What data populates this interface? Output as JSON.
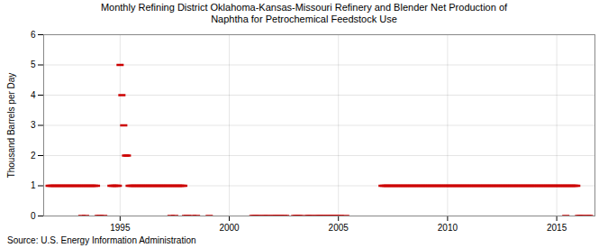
{
  "chart_data": {
    "type": "scatter",
    "title": "Monthly Refining District Oklahoma-Kansas-Missouri Refinery and Blender Net Production of\nNaphtha for Petrochemical Feedstock Use",
    "ylabel": "Thousand Barrels per Day",
    "source": "Source: U.S. Energy Information Administration",
    "color": "#cc0000",
    "marker": "dash",
    "grid": true,
    "xlim": [
      1991.5,
      2016.75
    ],
    "xticks": [
      1995,
      2000,
      2005,
      2010,
      2015
    ],
    "ylim": [
      0,
      6
    ],
    "yticks": [
      0,
      1,
      2,
      3,
      4,
      5,
      6
    ],
    "x": [
      1991.75,
      1991.833,
      1991.917,
      1992,
      1992.083,
      1992.167,
      1992.25,
      1992.333,
      1992.417,
      1992.5,
      1992.583,
      1992.667,
      1992.75,
      1992.833,
      1992.917,
      1993,
      1993.083,
      1993.167,
      1993.25,
      1993.333,
      1993.417,
      1993.5,
      1993.583,
      1993.667,
      1993.75,
      1993.833,
      1993.917,
      1993.25,
      1993.417,
      1994,
      1994.083,
      1994.25,
      1994.583,
      1994.667,
      1994.75,
      1994.833,
      1994.917,
      1995,
      1995.083,
      1995.167,
      1995.25,
      1995.333,
      1995.417,
      1995.5,
      1995.583,
      1995.667,
      1995.75,
      1995.833,
      1995.917,
      1996,
      1996.083,
      1996.167,
      1996.25,
      1996.333,
      1996.417,
      1996.5,
      1996.583,
      1996.667,
      1996.75,
      1996.833,
      1996.917,
      1997,
      1997.083,
      1997.167,
      1997.25,
      1997.333,
      1997.417,
      1997.5,
      1997.583,
      1997.667,
      1997.75,
      1997.833,
      1997.917,
      1997.333,
      1997.5,
      1998,
      1998.083,
      1998.333,
      1998.5,
      1999.083,
      2001.083,
      2001.167,
      2001.25,
      2001.333,
      2001.583,
      2001.667,
      2001.75,
      2002,
      2002.083,
      2002.167,
      2002.25,
      2002.333,
      2002.5,
      2002.583,
      2003,
      2003.083,
      2003.167,
      2003.25,
      2003.583,
      2003.667,
      2003.75,
      2004,
      2004.083,
      2004.167,
      2004.25,
      2004.333,
      2004.5,
      2004.583,
      2004.667,
      2004.75,
      2004.833,
      2005,
      2005.083,
      2005.333,
      2007,
      2007.083,
      2007.167,
      2007.25,
      2007.333,
      2007.417,
      2007.5,
      2007.583,
      2007.667,
      2007.75,
      2007.833,
      2007.917,
      2008,
      2008.083,
      2008.167,
      2008.25,
      2008.333,
      2008.417,
      2008.5,
      2008.583,
      2008.667,
      2008.75,
      2008.833,
      2008.917,
      2009,
      2009.083,
      2009.167,
      2009.25,
      2009.333,
      2009.417,
      2009.5,
      2009.583,
      2009.667,
      2009.75,
      2009.833,
      2009.917,
      2010,
      2010.083,
      2010.167,
      2010.25,
      2010.333,
      2010.417,
      2010.5,
      2010.583,
      2010.667,
      2010.75,
      2010.833,
      2010.917,
      2011,
      2011.083,
      2011.167,
      2011.25,
      2011.333,
      2011.417,
      2011.5,
      2011.583,
      2011.667,
      2011.75,
      2011.833,
      2011.917,
      2012,
      2012.083,
      2012.167,
      2012.25,
      2012.333,
      2012.417,
      2012.5,
      2012.583,
      2012.667,
      2012.75,
      2012.833,
      2012.917,
      2013,
      2013.083,
      2013.167,
      2013.25,
      2013.333,
      2013.417,
      2013.5,
      2013.583,
      2013.667,
      2013.75,
      2013.833,
      2013.917,
      2014,
      2014.083,
      2014.167,
      2014.25,
      2014.333,
      2014.417,
      2014.5,
      2014.583,
      2014.667,
      2014.75,
      2014.833,
      2014.917,
      2015,
      2015.083,
      2015.167,
      2015.25,
      2015.333,
      2015.417,
      2015.5,
      2015.583,
      2015.667,
      2015.75,
      2015.833,
      2015.917,
      2015.417,
      2016,
      2016.083,
      2016.167,
      2016.417,
      2016.5
    ],
    "values": [
      1,
      1,
      1,
      1,
      1,
      1,
      1,
      1,
      1,
      1,
      1,
      1,
      1,
      1,
      1,
      1,
      1,
      1,
      1,
      1,
      1,
      1,
      1,
      1,
      1,
      1,
      1,
      0,
      0,
      0,
      0,
      0,
      1,
      1,
      1,
      1,
      1,
      5,
      4,
      3,
      2,
      2,
      1,
      1,
      1,
      1,
      1,
      1,
      1,
      1,
      1,
      1,
      1,
      1,
      1,
      1,
      1,
      1,
      1,
      1,
      1,
      1,
      1,
      1,
      1,
      1,
      1,
      1,
      1,
      1,
      1,
      1,
      1,
      0,
      0,
      0,
      0,
      0,
      0,
      0,
      0,
      0,
      0,
      0,
      0,
      0,
      0,
      0,
      0,
      0,
      0,
      0,
      0,
      0,
      0,
      0,
      0,
      0,
      0,
      0,
      0,
      0,
      0,
      0,
      0,
      0,
      0,
      0,
      0,
      0,
      0,
      0,
      0,
      0,
      1,
      1,
      1,
      1,
      1,
      1,
      1,
      1,
      1,
      1,
      1,
      1,
      1,
      1,
      1,
      1,
      1,
      1,
      1,
      1,
      1,
      1,
      1,
      1,
      1,
      1,
      1,
      1,
      1,
      1,
      1,
      1,
      1,
      1,
      1,
      1,
      1,
      1,
      1,
      1,
      1,
      1,
      1,
      1,
      1,
      1,
      1,
      1,
      1,
      1,
      1,
      1,
      1,
      1,
      1,
      1,
      1,
      1,
      1,
      1,
      1,
      1,
      1,
      1,
      1,
      1,
      1,
      1,
      1,
      1,
      1,
      1,
      1,
      1,
      1,
      1,
      1,
      1,
      1,
      1,
      1,
      1,
      1,
      1,
      1,
      1,
      1,
      1,
      1,
      1,
      1,
      1,
      1,
      1,
      1,
      1,
      1,
      1,
      1,
      1,
      1,
      1,
      1,
      1,
      1,
      1,
      1,
      1,
      0,
      0,
      0,
      0,
      0,
      0
    ]
  }
}
